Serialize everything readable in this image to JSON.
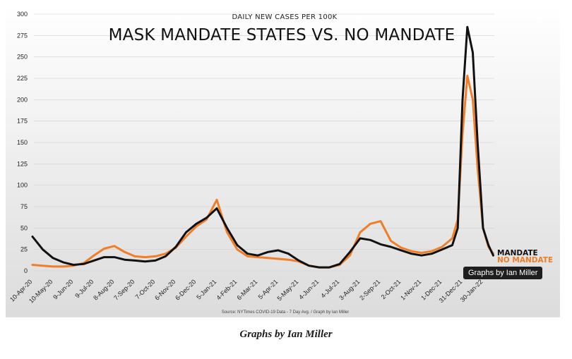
{
  "caption": "Graphs by Ian Miller",
  "tooltip": "Graphs by Ian Miller",
  "colors": {
    "mandate": "#111111",
    "no_mandate": "#f07d27",
    "background_top": "#ffffff",
    "background_bottom": "#dcdcdc",
    "grid": "#d0d0d0"
  },
  "chart_data": {
    "type": "line",
    "title": "MASK MANDATE STATES VS. NO MANDATE",
    "subtitle": "DAILY NEW CASES PER 100K",
    "source": "Source: NYTimes COVID-19 Data - 7 Day Avg. / Graph by Ian Miller",
    "xlabel": "",
    "ylabel": "",
    "ylim": [
      0,
      300
    ],
    "yticks": [
      0,
      25,
      50,
      75,
      100,
      125,
      150,
      175,
      200,
      225,
      250,
      275,
      300
    ],
    "grid": true,
    "legend": "end-of-line labels",
    "x_tick_labels": [
      "10-Apr-20",
      "10-May-20",
      "9-Jun-20",
      "9-Jul-20",
      "8-Aug-20",
      "7-Sep-20",
      "7-Oct-20",
      "6-Nov-20",
      "6-Dec-20",
      "5-Jan-21",
      "4-Feb-21",
      "6-Mar-21",
      "5-Apr-21",
      "5-May-21",
      "4-Jun-21",
      "4-Jul-21",
      "3-Aug-21",
      "2-Sep-21",
      "2-Oct-21",
      "1-Nov-21",
      "1-Dec-21",
      "31-Dec-21",
      "30-Jan-22"
    ],
    "x": [
      "10-Apr-20",
      "25-Apr-20",
      "10-May-20",
      "25-May-20",
      "9-Jun-20",
      "24-Jun-20",
      "9-Jul-20",
      "24-Jul-20",
      "8-Aug-20",
      "23-Aug-20",
      "7-Sep-20",
      "22-Sep-20",
      "7-Oct-20",
      "22-Oct-20",
      "6-Nov-20",
      "21-Nov-20",
      "6-Dec-20",
      "21-Dec-20",
      "5-Jan-21",
      "20-Jan-21",
      "4-Feb-21",
      "19-Feb-21",
      "6-Mar-21",
      "21-Mar-21",
      "5-Apr-21",
      "20-Apr-21",
      "5-May-21",
      "20-May-21",
      "4-Jun-21",
      "19-Jun-21",
      "4-Jul-21",
      "19-Jul-21",
      "3-Aug-21",
      "18-Aug-21",
      "2-Sep-21",
      "17-Sep-21",
      "2-Oct-21",
      "17-Oct-21",
      "1-Nov-21",
      "16-Nov-21",
      "1-Dec-21",
      "16-Dec-21",
      "24-Dec-21",
      "31-Dec-21",
      "7-Jan-22",
      "15-Jan-22",
      "22-Jan-22",
      "30-Jan-22",
      "7-Feb-22",
      "14-Feb-22"
    ],
    "series": [
      {
        "name": "MANDATE",
        "values": [
          40,
          25,
          15,
          10,
          7,
          8,
          12,
          16,
          16,
          13,
          12,
          11,
          12,
          17,
          28,
          45,
          55,
          62,
          73,
          50,
          30,
          20,
          18,
          22,
          24,
          20,
          12,
          6,
          4,
          4,
          8,
          22,
          38,
          36,
          31,
          28,
          24,
          20,
          18,
          20,
          25,
          30,
          50,
          200,
          285,
          255,
          150,
          50,
          30,
          18
        ]
      },
      {
        "name": "NO MANDATE",
        "values": [
          7,
          6,
          5,
          5,
          6,
          9,
          18,
          26,
          29,
          22,
          17,
          16,
          17,
          20,
          27,
          40,
          52,
          60,
          83,
          45,
          25,
          17,
          16,
          15,
          14,
          13,
          11,
          6,
          4,
          4,
          7,
          18,
          45,
          55,
          58,
          35,
          27,
          23,
          21,
          23,
          28,
          38,
          60,
          160,
          228,
          200,
          120,
          50,
          28,
          20
        ]
      }
    ]
  }
}
